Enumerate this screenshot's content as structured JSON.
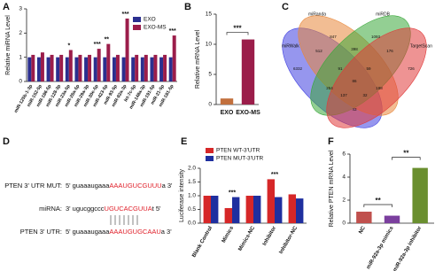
{
  "chart_data": [
    {
      "type": "bar",
      "panel": "A",
      "ylabel": "Relative miRNA Level",
      "categories": [
        "miR-125b-1-3p",
        "miR-152-5p",
        "miR-186-5p",
        "miR-128-3p",
        "miR-23a-5p",
        "miR-26a-5p",
        "miR-29a-3p",
        "miR-30e-5p",
        "miR-423-5p",
        "miR-93-5p",
        "miR-92a-3p",
        "let-7c-5p",
        "miR-148a-3p",
        "miR-191-5p",
        "miR-21-5p",
        "miR-181-5p"
      ],
      "series": [
        {
          "name": "EXO",
          "color": "#2b2f8f",
          "values": [
            1,
            1,
            1,
            1,
            1,
            1,
            1,
            1,
            1,
            1,
            1,
            1,
            1,
            1,
            1,
            1
          ]
        },
        {
          "name": "EXO-MS",
          "color": "#9b1d4a",
          "values": [
            1.1,
            1.2,
            1.1,
            1.1,
            1.3,
            1.1,
            1.1,
            1.35,
            1.55,
            1.1,
            2.6,
            1.1,
            1.1,
            1.1,
            1.1,
            1.9
          ]
        }
      ],
      "significance": [
        null,
        null,
        null,
        null,
        "*",
        null,
        null,
        "***",
        "**",
        null,
        "***",
        null,
        null,
        null,
        null,
        "***"
      ],
      "ylim": [
        0,
        3
      ],
      "yticks": [
        0,
        1,
        2,
        3
      ],
      "legend": "upper right"
    },
    {
      "type": "bar",
      "panel": "B",
      "ylabel": "Relative mRNA Level",
      "categories": [
        "EXO",
        "EXO-MS"
      ],
      "values": [
        1,
        10.8
      ],
      "colors": [
        "#c2703d",
        "#9b1d4a"
      ],
      "comparisons": [
        {
          "text": "***",
          "pair": [
            0,
            1
          ]
        }
      ],
      "ylim": [
        0,
        15
      ],
      "yticks": [
        0,
        5,
        10,
        15
      ]
    },
    {
      "type": "venn",
      "panel": "C",
      "sets": [
        {
          "name": "miRWalk",
          "color": "#3f3fe0"
        },
        {
          "name": "miRanda",
          "color": "#e8873a"
        },
        {
          "name": "miRDB",
          "color": "#3aa83a"
        },
        {
          "name": "TargetScan",
          "color": "#e03a3a"
        }
      ],
      "region_counts": [
        6332,
        847,
        1093,
        726,
        512,
        398,
        176,
        254,
        43,
        188,
        91,
        59,
        137,
        32,
        86
      ]
    },
    {
      "type": "sequence",
      "panel": "D",
      "rows": [
        {
          "label": "PTEN 3' UTR MUT:",
          "prefix": "5' guaaaugaaa",
          "highlight": "AAAUGUCGUUU",
          "suffix": "a 3'"
        },
        {
          "label": "miRNA:",
          "prefix": "3' ugucggccc",
          "highlight": "UGUCACGUUA",
          "suffix": "t 5'"
        },
        {
          "label": "PTEN 3' UTR:",
          "prefix": "5' guaaaugaaa",
          "highlight": "AAAUGUGCAAU",
          "suffix": "a 3'"
        }
      ]
    },
    {
      "type": "bar",
      "panel": "E",
      "ylabel": "Luciferase intensity",
      "categories": [
        "Blank Control",
        "Mimics",
        "Mimics-NC",
        "Inhibitor",
        "Inhibitor-NC"
      ],
      "series": [
        {
          "name": "PTEN WT-3'UTR",
          "color": "#d62728",
          "values": [
            1.0,
            0.55,
            1.0,
            1.6,
            1.05
          ]
        },
        {
          "name": "PTEN MUT-3'UTR",
          "color": "#1f2f9f",
          "values": [
            1.0,
            0.95,
            1.0,
            0.95,
            0.9
          ]
        }
      ],
      "significance": [
        null,
        "***",
        null,
        "***",
        null
      ],
      "ylim": [
        0,
        2
      ],
      "yticks": [
        {
          "value": 0,
          "label": "0.0"
        },
        {
          "value": 0.5,
          "label": "0.5"
        },
        {
          "value": 1,
          "label": "1.0"
        },
        {
          "value": 1.5,
          "label": "1.5"
        },
        {
          "value": 2,
          "label": "2.0"
        }
      ],
      "legend": "upper left"
    },
    {
      "type": "bar",
      "panel": "F",
      "ylabel": "Relative PTEN mRNA Level",
      "categories": [
        "NC",
        "miR-92a-3p mimics",
        "miR-92a-3p inhibitor"
      ],
      "values": [
        1.0,
        0.65,
        4.8
      ],
      "colors": [
        "#c0504d",
        "#7b3f9e",
        "#6a8f2f"
      ],
      "comparisons": [
        {
          "text": "**",
          "pair": [
            0,
            1
          ]
        },
        {
          "text": "**",
          "pair": [
            1,
            2
          ]
        }
      ],
      "ylim": [
        0,
        6
      ],
      "yticks": [
        0,
        2,
        4,
        6
      ]
    }
  ]
}
